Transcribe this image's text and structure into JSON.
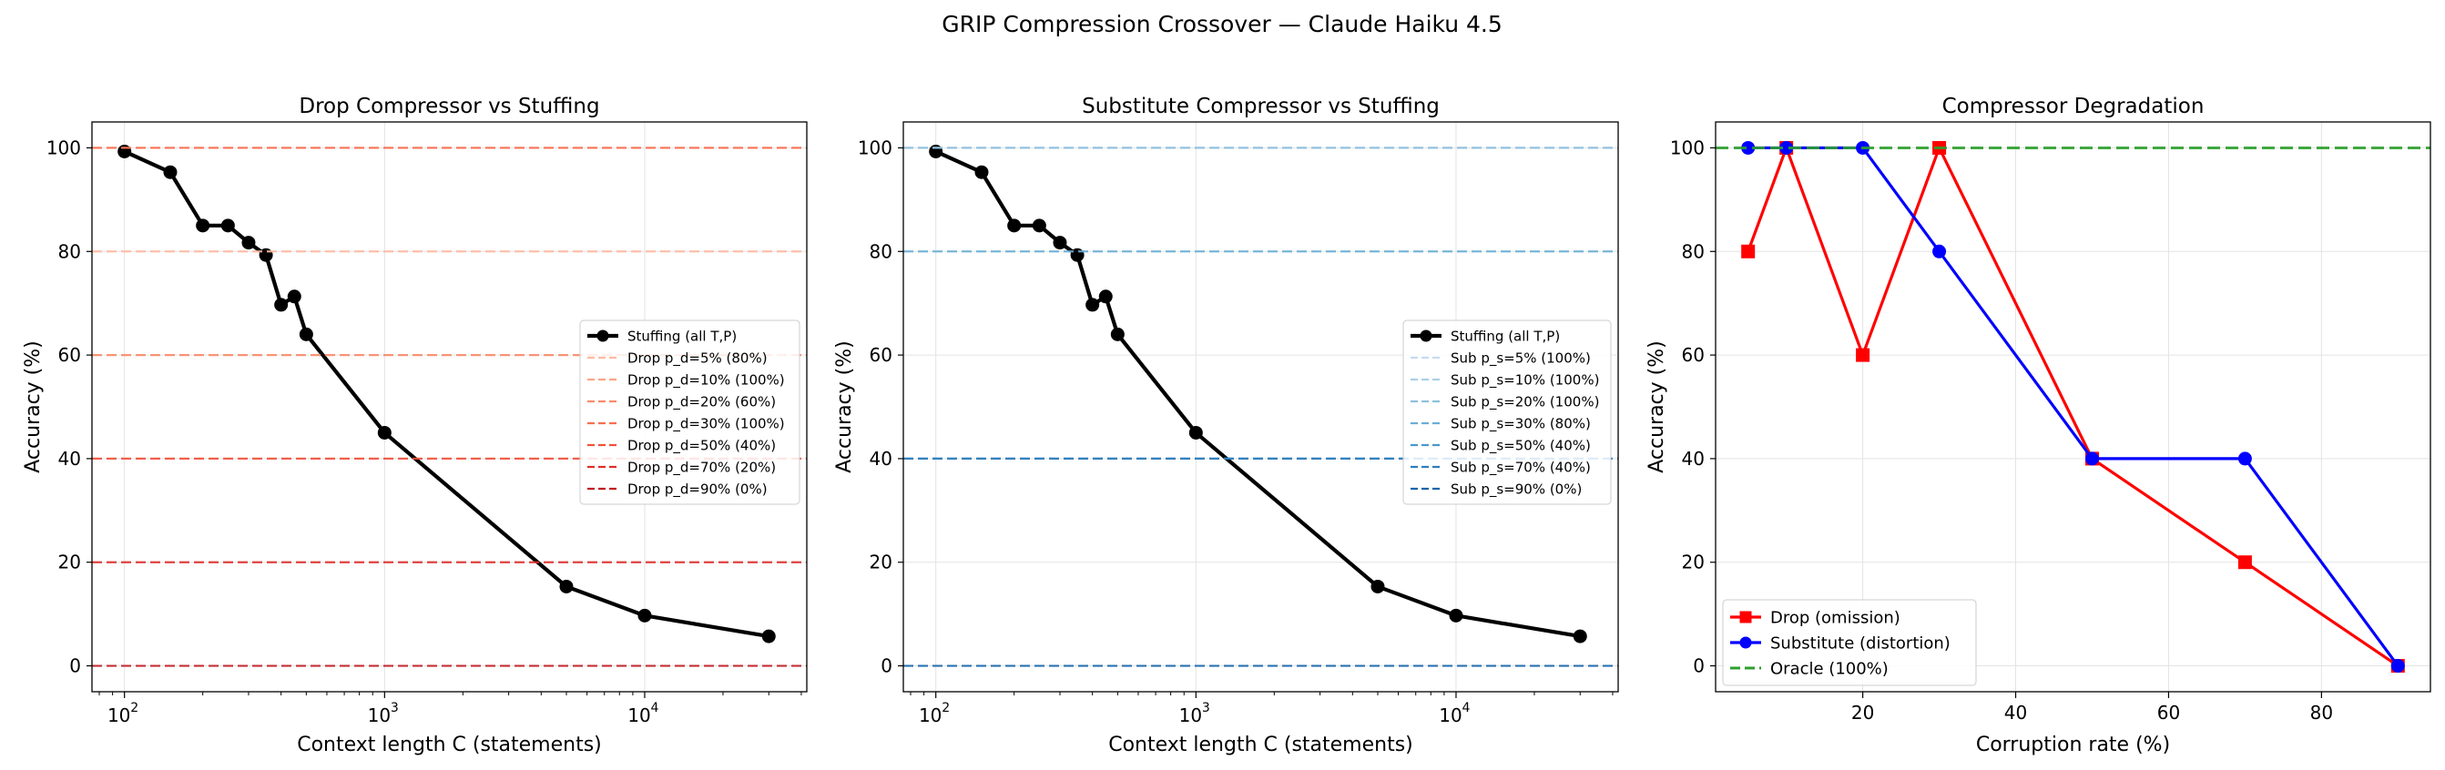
{
  "suptitle": "GRIP Compression Crossover — Claude Haiku 4.5",
  "chart_data": [
    {
      "type": "line",
      "title": "Drop Compressor vs Stuffing",
      "xlabel": "Context length C (statements)",
      "ylabel": "Accuracy (%)",
      "xscale": "log",
      "xlim": [
        75,
        42000
      ],
      "ylim": [
        -5,
        105
      ],
      "xticks": [
        100,
        1000,
        10000
      ],
      "xtick_labels": [
        [
          "10",
          "2"
        ],
        [
          "10",
          "3"
        ],
        [
          "10",
          "4"
        ]
      ],
      "yticks": [
        0,
        20,
        40,
        60,
        80,
        100
      ],
      "ytick_labels": [
        "0",
        "20",
        "40",
        "60",
        "80",
        "100"
      ],
      "grid": true,
      "legend_loc": "center-right",
      "series": [
        {
          "name": "Stuffing (all T,P)",
          "kind": "line",
          "color": "#000000",
          "marker": "circle",
          "x": [
            100,
            150,
            200,
            250,
            300,
            350,
            400,
            450,
            500,
            1000,
            5000,
            10000,
            30000
          ],
          "y": [
            99.3,
            95.3,
            85.0,
            85.0,
            81.7,
            79.3,
            69.7,
            71.3,
            64.0,
            45.0,
            15.3,
            9.7,
            5.7
          ]
        },
        {
          "name": "Drop p_d=5% (80%)",
          "kind": "hline",
          "y": 80,
          "color": "#fcbba1"
        },
        {
          "name": "Drop p_d=10% (100%)",
          "kind": "hline",
          "y": 100,
          "color": "#fca487"
        },
        {
          "name": "Drop p_d=20% (60%)",
          "kind": "hline",
          "y": 60,
          "color": "#fb8a6a"
        },
        {
          "name": "Drop p_d=30% (100%)",
          "kind": "hline",
          "y": 100,
          "color": "#f96e50"
        },
        {
          "name": "Drop p_d=50% (40%)",
          "kind": "hline",
          "y": 40,
          "color": "#f0503a"
        },
        {
          "name": "Drop p_d=70% (20%)",
          "kind": "hline",
          "y": 20,
          "color": "#de2f2b"
        },
        {
          "name": "Drop p_d=90% (0%)",
          "kind": "hline",
          "y": 0,
          "color": "#c11b22"
        }
      ]
    },
    {
      "type": "line",
      "title": "Substitute Compressor vs Stuffing",
      "xlabel": "Context length C (statements)",
      "ylabel": "Accuracy (%)",
      "xscale": "log",
      "xlim": [
        75,
        42000
      ],
      "ylim": [
        -5,
        105
      ],
      "xticks": [
        100,
        1000,
        10000
      ],
      "xtick_labels": [
        [
          "10",
          "2"
        ],
        [
          "10",
          "3"
        ],
        [
          "10",
          "4"
        ]
      ],
      "yticks": [
        0,
        20,
        40,
        60,
        80,
        100
      ],
      "ytick_labels": [
        "0",
        "20",
        "40",
        "60",
        "80",
        "100"
      ],
      "grid": true,
      "legend_loc": "center-right",
      "series": [
        {
          "name": "Stuffing (all T,P)",
          "kind": "line",
          "color": "#000000",
          "marker": "circle",
          "x": [
            100,
            150,
            200,
            250,
            300,
            350,
            400,
            450,
            500,
            1000,
            5000,
            10000,
            30000
          ],
          "y": [
            99.3,
            95.3,
            85.0,
            85.0,
            81.7,
            79.3,
            69.7,
            71.3,
            64.0,
            45.0,
            15.3,
            9.7,
            5.7
          ]
        },
        {
          "name": "Sub p_s=5% (100%)",
          "kind": "hline",
          "y": 100,
          "color": "#c6dbef"
        },
        {
          "name": "Sub p_s=10% (100%)",
          "kind": "hline",
          "y": 100,
          "color": "#abcfe6"
        },
        {
          "name": "Sub p_s=20% (100%)",
          "kind": "hline",
          "y": 100,
          "color": "#8dc0de"
        },
        {
          "name": "Sub p_s=30% (80%)",
          "kind": "hline",
          "y": 80,
          "color": "#6baed6"
        },
        {
          "name": "Sub p_s=50% (40%)",
          "kind": "hline",
          "y": 40,
          "color": "#4a98c9"
        },
        {
          "name": "Sub p_s=70% (40%)",
          "kind": "hline",
          "y": 40,
          "color": "#2f7ebc"
        },
        {
          "name": "Sub p_s=90% (0%)",
          "kind": "hline",
          "y": 0,
          "color": "#1764ab"
        }
      ]
    },
    {
      "type": "line",
      "title": "Compressor Degradation",
      "xlabel": "Corruption rate (%)",
      "ylabel": "Accuracy (%)",
      "xscale": "linear",
      "xlim": [
        0.75,
        94.25
      ],
      "ylim": [
        -5,
        105
      ],
      "xticks": [
        20,
        40,
        60,
        80
      ],
      "xtick_labels": [
        "20",
        "40",
        "60",
        "80"
      ],
      "yticks": [
        0,
        20,
        40,
        60,
        80,
        100
      ],
      "ytick_labels": [
        "0",
        "20",
        "40",
        "60",
        "80",
        "100"
      ],
      "grid": true,
      "legend_loc": "lower-left",
      "series": [
        {
          "name": "Drop (omission)",
          "kind": "line",
          "color": "#ff0000",
          "marker": "square",
          "x": [
            5,
            10,
            20,
            30,
            50,
            70,
            90
          ],
          "y": [
            80,
            100,
            60,
            100,
            40,
            20,
            0
          ]
        },
        {
          "name": "Substitute (distortion)",
          "kind": "line",
          "color": "#0000ff",
          "marker": "circle",
          "x": [
            5,
            10,
            20,
            30,
            50,
            70,
            90
          ],
          "y": [
            100,
            100,
            100,
            80,
            40,
            40,
            0
          ]
        },
        {
          "name": "Oracle (100%)",
          "kind": "hline",
          "y": 100,
          "color": "#2ca02c"
        }
      ]
    }
  ]
}
